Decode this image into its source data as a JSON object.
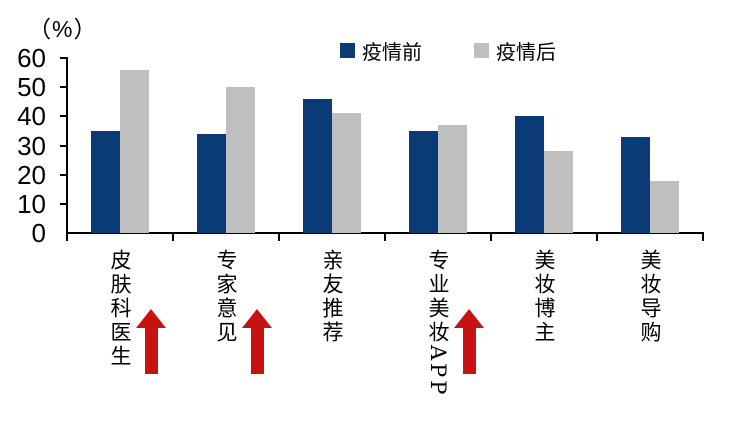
{
  "unit_label": "（%）",
  "colors": {
    "series_pre": "#0a3b76",
    "series_post": "#bfbfbf",
    "arrow": "#c81212",
    "axis": "#000000",
    "background": "#ffffff"
  },
  "chart_data": {
    "type": "bar",
    "title": "",
    "ylabel": "（%）",
    "xlabel": "",
    "categories": [
      "皮肤科医生",
      "专家意见",
      "亲友推荐",
      "专业美妆APP",
      "美妆博主",
      "美妆导购"
    ],
    "series": [
      {
        "name": "疫情前",
        "color": "#0a3b76",
        "values": [
          35,
          34,
          46,
          35,
          40,
          33
        ]
      },
      {
        "name": "疫情后",
        "color": "#bfbfbf",
        "values": [
          56,
          50,
          41,
          37,
          28,
          18
        ]
      }
    ],
    "ylim": [
      0,
      60
    ],
    "yticks": [
      0,
      10,
      20,
      30,
      40,
      50,
      60
    ],
    "grid": false,
    "legend_position": "top-center",
    "arrow_flags": [
      true,
      true,
      false,
      true,
      false,
      false
    ],
    "arrow_meaning": "increase-highlight"
  }
}
